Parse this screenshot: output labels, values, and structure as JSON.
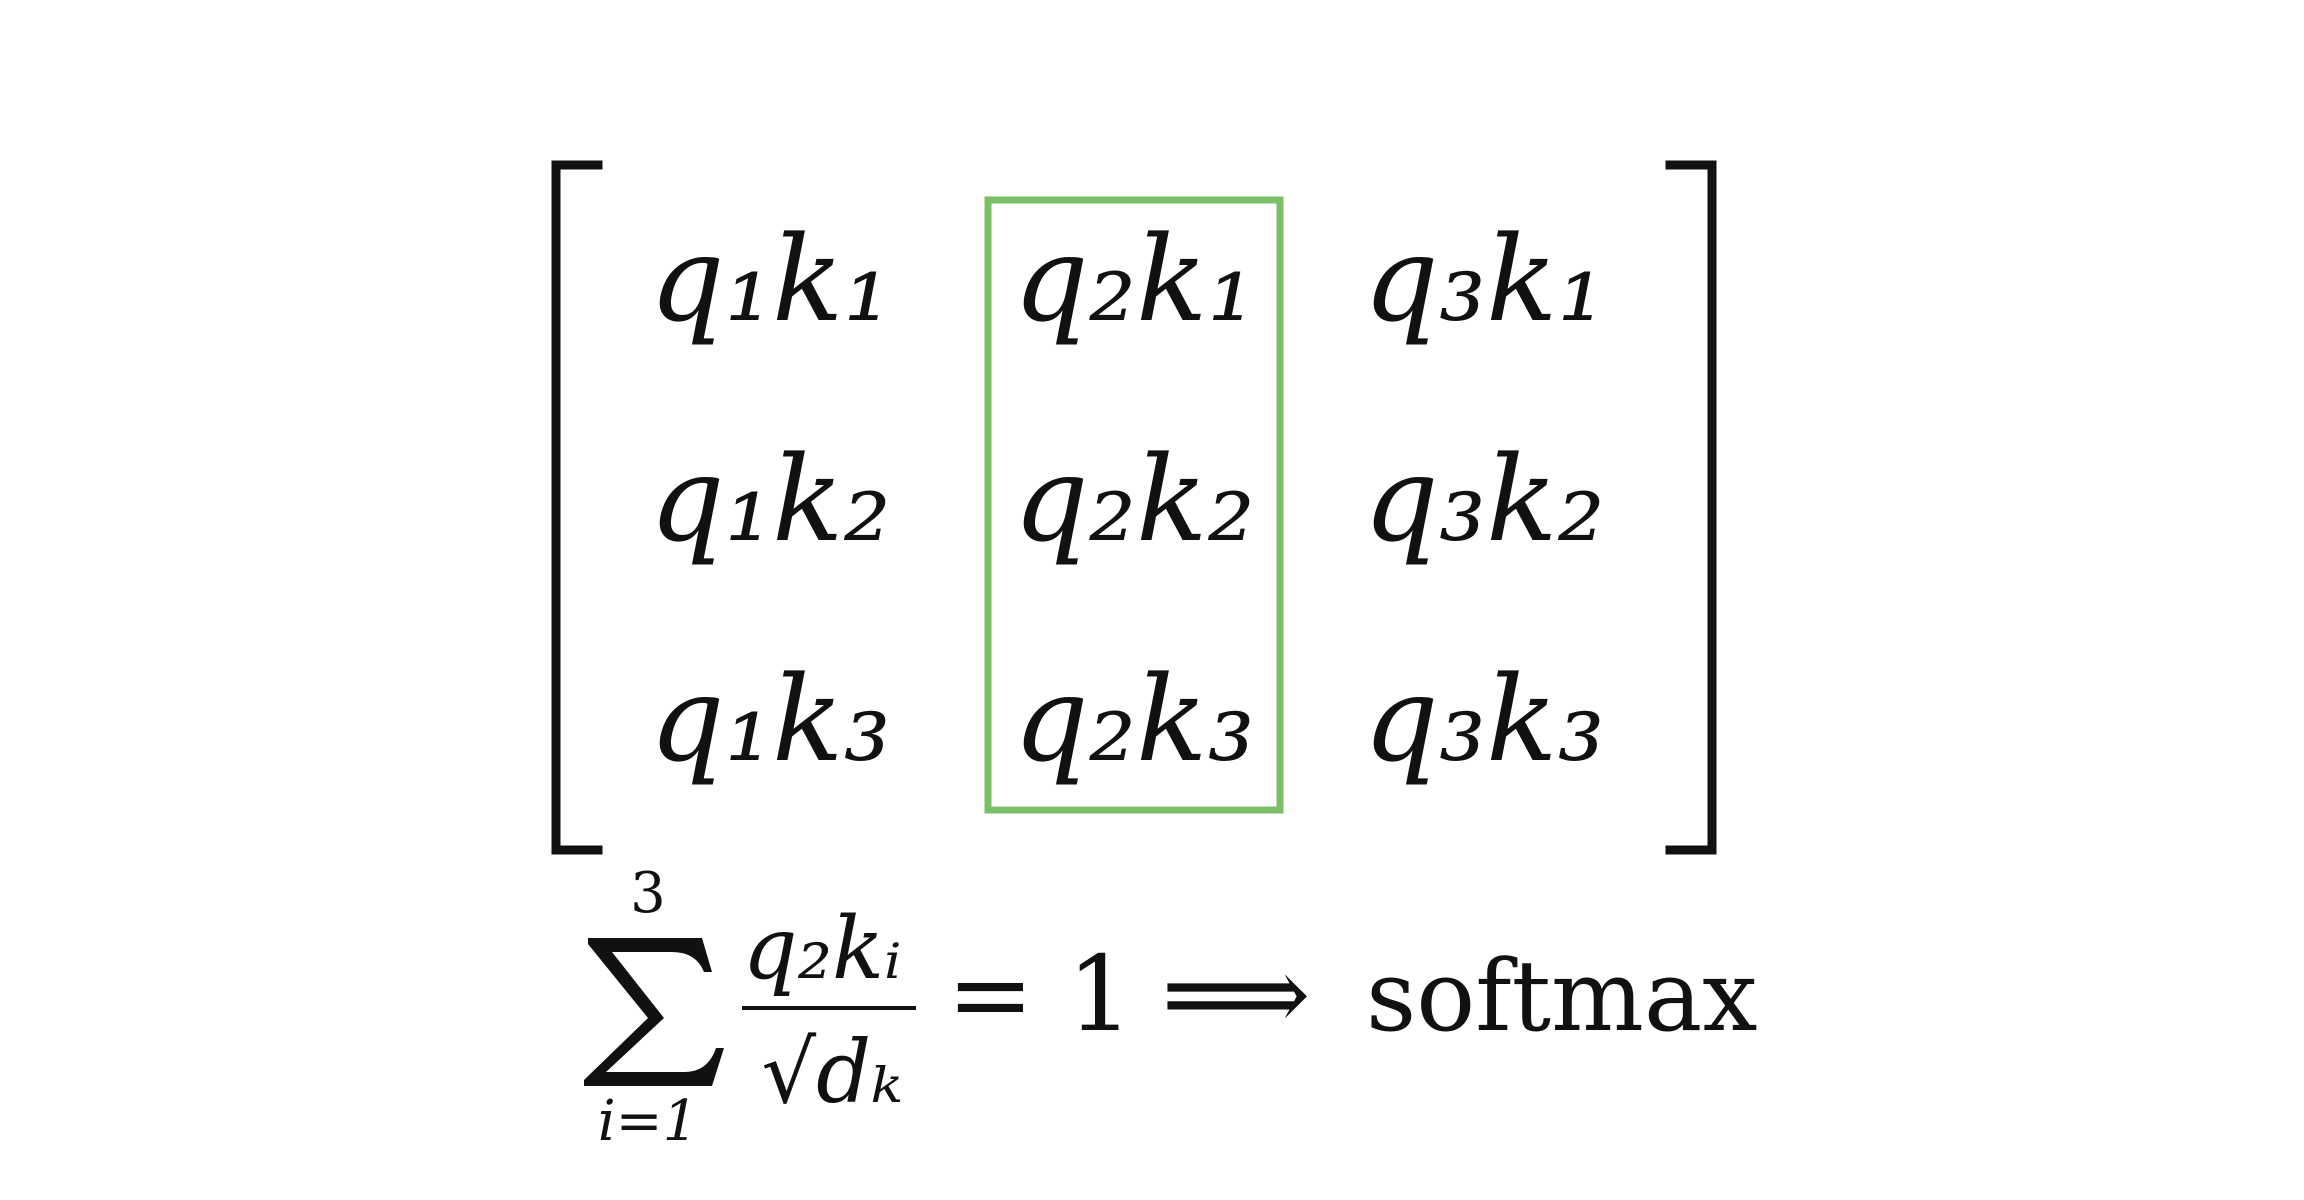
{
  "matrix": {
    "cells": [
      [
        "q₁k₁",
        "q₂k₁",
        "q₃k₁"
      ],
      [
        "q₁k₂",
        "q₂k₂",
        "q₃k₂"
      ],
      [
        "q₁k₃",
        "q₂k₃",
        "q₃k₃"
      ]
    ],
    "highlighted_column": 2,
    "highlight_color": "#7cbf69",
    "bracket_color": "#111111"
  },
  "formula": {
    "sum_upper": "3",
    "sum_lower": "i=1",
    "numerator": "q₂kᵢ",
    "denominator": "√dₖ",
    "equals": "= 1",
    "implies": "⟹",
    "result": "softmax"
  }
}
